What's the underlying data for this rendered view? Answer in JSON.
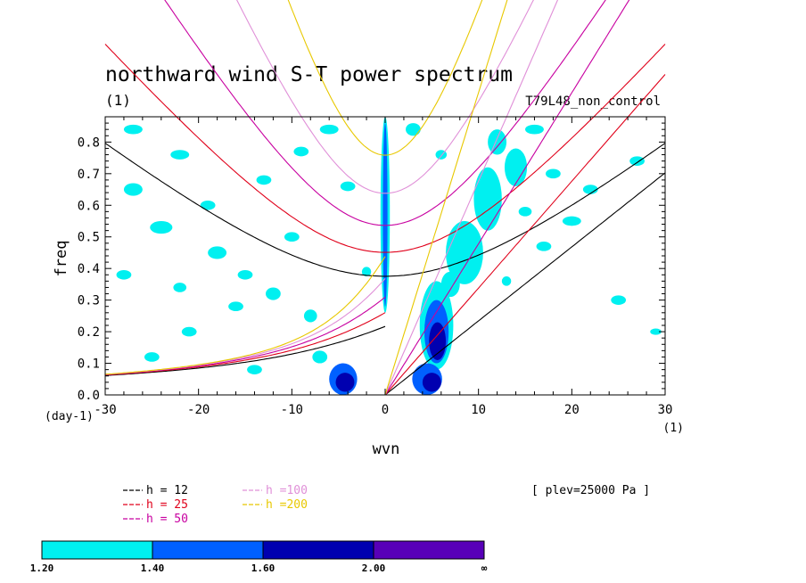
{
  "chart_data": {
    "type": "contour",
    "title": "northward wind S-T power spectrum",
    "subtitle_left": "(1)",
    "subtitle_right": "T79L48_non_control",
    "xlabel": "wvn",
    "ylabel": "freq",
    "x_unit_label": "(1)",
    "y_unit_label": "(day-1)",
    "xlim": [
      -30,
      30
    ],
    "ylim": [
      0,
      0.88
    ],
    "xticks": [
      -30,
      -20,
      -10,
      0,
      10,
      20,
      30
    ],
    "xtick_labels": [
      "-30",
      "-20",
      "-10",
      "0",
      "10",
      "20",
      "30"
    ],
    "yticks": [
      0,
      0.1,
      0.2,
      0.3,
      0.4,
      0.5,
      0.6,
      0.7,
      0.8
    ],
    "ytick_labels": [
      "0.0",
      "0.1",
      "0.2",
      "0.3",
      "0.4",
      "0.5",
      "0.6",
      "0.7",
      "0.8"
    ],
    "annotation": "[ plev=25000 Pa ]",
    "dispersion_curves": [
      {
        "name": "h = 12",
        "h": 12,
        "color": "#000000"
      },
      {
        "name": "h = 25",
        "h": 25,
        "color": "#e0001a"
      },
      {
        "name": "h = 50",
        "h": 50,
        "color": "#c800a0"
      },
      {
        "name": "h =100",
        "h": 100,
        "color": "#e090d8"
      },
      {
        "name": "h =200",
        "h": 200,
        "color": "#e8c800"
      }
    ],
    "colorbar": {
      "labels": [
        "1.20",
        "1.40",
        "1.60",
        "2.00",
        "∞"
      ],
      "colors": [
        "#00f0f0",
        "#0060ff",
        "#0000b0",
        "#5800b8"
      ]
    },
    "power_regions": [
      {
        "x": 0,
        "y": 0.57,
        "rx": 0.5,
        "ry": 0.31,
        "level": 1
      },
      {
        "x": 0,
        "y": 0.57,
        "rx": 0.25,
        "ry": 0.29,
        "level": 2
      },
      {
        "x": 5.5,
        "y": 0.22,
        "rx": 1.8,
        "ry": 0.14,
        "level": 1
      },
      {
        "x": 5.5,
        "y": 0.2,
        "rx": 1.3,
        "ry": 0.1,
        "level": 2
      },
      {
        "x": 5.6,
        "y": 0.17,
        "rx": 0.9,
        "ry": 0.06,
        "level": 3
      },
      {
        "x": 4.5,
        "y": 0.05,
        "rx": 1.6,
        "ry": 0.05,
        "level": 2
      },
      {
        "x": 5.0,
        "y": 0.04,
        "rx": 1.0,
        "ry": 0.03,
        "level": 3
      },
      {
        "x": -4.5,
        "y": 0.05,
        "rx": 1.5,
        "ry": 0.05,
        "level": 2
      },
      {
        "x": -4.3,
        "y": 0.04,
        "rx": 1.0,
        "ry": 0.03,
        "level": 3
      },
      {
        "x": 8.5,
        "y": 0.45,
        "rx": 2.0,
        "ry": 0.1,
        "level": 1
      },
      {
        "x": 11,
        "y": 0.62,
        "rx": 1.5,
        "ry": 0.1,
        "level": 1
      },
      {
        "x": 14,
        "y": 0.72,
        "rx": 1.2,
        "ry": 0.06,
        "level": 1
      },
      {
        "x": 12,
        "y": 0.8,
        "rx": 1.0,
        "ry": 0.04,
        "level": 1
      },
      {
        "x": 7,
        "y": 0.35,
        "rx": 1.0,
        "ry": 0.04,
        "level": 1
      },
      {
        "x": -27,
        "y": 0.65,
        "rx": 1.0,
        "ry": 0.02,
        "level": 1
      },
      {
        "x": -24,
        "y": 0.53,
        "rx": 1.2,
        "ry": 0.02,
        "level": 1
      },
      {
        "x": -22,
        "y": 0.76,
        "rx": 1.0,
        "ry": 0.015,
        "level": 1
      },
      {
        "x": -18,
        "y": 0.45,
        "rx": 1.0,
        "ry": 0.02,
        "level": 1
      },
      {
        "x": -15,
        "y": 0.38,
        "rx": 0.8,
        "ry": 0.015,
        "level": 1
      },
      {
        "x": -12,
        "y": 0.32,
        "rx": 0.8,
        "ry": 0.02,
        "level": 1
      },
      {
        "x": -8,
        "y": 0.25,
        "rx": 0.7,
        "ry": 0.02,
        "level": 1
      },
      {
        "x": -7,
        "y": 0.12,
        "rx": 0.8,
        "ry": 0.02,
        "level": 1
      },
      {
        "x": -28,
        "y": 0.38,
        "rx": 0.8,
        "ry": 0.015,
        "level": 1
      },
      {
        "x": -19,
        "y": 0.6,
        "rx": 0.8,
        "ry": 0.015,
        "level": 1
      },
      {
        "x": -13,
        "y": 0.68,
        "rx": 0.8,
        "ry": 0.015,
        "level": 1
      },
      {
        "x": -27,
        "y": 0.84,
        "rx": 1.0,
        "ry": 0.015,
        "level": 1
      },
      {
        "x": -16,
        "y": 0.28,
        "rx": 0.8,
        "ry": 0.015,
        "level": 1
      },
      {
        "x": -21,
        "y": 0.2,
        "rx": 0.8,
        "ry": 0.015,
        "level": 1
      },
      {
        "x": -10,
        "y": 0.5,
        "rx": 0.8,
        "ry": 0.015,
        "level": 1
      },
      {
        "x": -4,
        "y": 0.66,
        "rx": 0.8,
        "ry": 0.015,
        "level": 1
      },
      {
        "x": -6,
        "y": 0.84,
        "rx": 1.0,
        "ry": 0.015,
        "level": 1
      },
      {
        "x": -22,
        "y": 0.34,
        "rx": 0.7,
        "ry": 0.015,
        "level": 1
      },
      {
        "x": -25,
        "y": 0.12,
        "rx": 0.8,
        "ry": 0.015,
        "level": 1
      },
      {
        "x": -14,
        "y": 0.08,
        "rx": 0.8,
        "ry": 0.015,
        "level": 1
      },
      {
        "x": -9,
        "y": 0.77,
        "rx": 0.8,
        "ry": 0.015,
        "level": 1
      },
      {
        "x": 20,
        "y": 0.55,
        "rx": 1.0,
        "ry": 0.015,
        "level": 1
      },
      {
        "x": 22,
        "y": 0.65,
        "rx": 0.8,
        "ry": 0.015,
        "level": 1
      },
      {
        "x": 17,
        "y": 0.47,
        "rx": 0.8,
        "ry": 0.015,
        "level": 1
      },
      {
        "x": 25,
        "y": 0.3,
        "rx": 0.8,
        "ry": 0.015,
        "level": 1
      },
      {
        "x": 27,
        "y": 0.74,
        "rx": 0.8,
        "ry": 0.015,
        "level": 1
      },
      {
        "x": 16,
        "y": 0.84,
        "rx": 1.0,
        "ry": 0.015,
        "level": 1
      },
      {
        "x": 29,
        "y": 0.2,
        "rx": 0.6,
        "ry": 0.01,
        "level": 1
      },
      {
        "x": 18,
        "y": 0.7,
        "rx": 0.8,
        "ry": 0.015,
        "level": 1
      },
      {
        "x": 3,
        "y": 0.84,
        "rx": 0.8,
        "ry": 0.02,
        "level": 1
      },
      {
        "x": 6,
        "y": 0.76,
        "rx": 0.6,
        "ry": 0.015,
        "level": 1
      },
      {
        "x": -2,
        "y": 0.39,
        "rx": 0.5,
        "ry": 0.015,
        "level": 1
      },
      {
        "x": 15,
        "y": 0.58,
        "rx": 0.7,
        "ry": 0.015,
        "level": 1
      },
      {
        "x": 13,
        "y": 0.36,
        "rx": 0.5,
        "ry": 0.015,
        "level": 1
      }
    ]
  }
}
